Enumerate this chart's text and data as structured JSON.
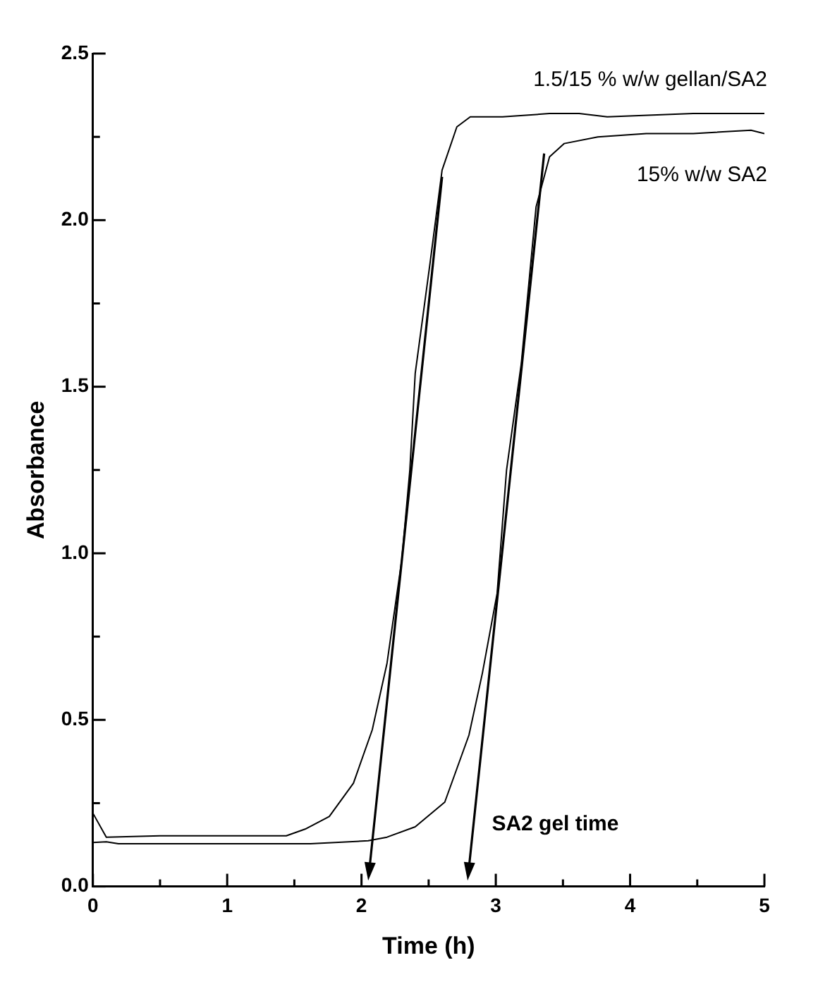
{
  "chart_data": {
    "type": "line",
    "xlabel": "Time (h)",
    "ylabel": "Absorbance",
    "xlim": [
      0,
      5
    ],
    "ylim": [
      0,
      2.5
    ],
    "xticks": [
      0,
      {
        "value": 0.5,
        "label": null
      },
      1,
      {
        "value": 1.5,
        "label": null
      },
      2,
      {
        "value": 2.5,
        "label": null
      },
      3,
      {
        "value": 3.5,
        "label": null
      },
      4,
      {
        "value": 4.5,
        "label": null
      },
      5
    ],
    "yticks": [
      {
        "value": 0,
        "label": "0.0"
      },
      {
        "value": 0.25,
        "label": null
      },
      {
        "value": 0.5,
        "label": "0.5"
      },
      {
        "value": 0.75,
        "label": null
      },
      {
        "value": 1,
        "label": "1.0"
      },
      {
        "value": 1.25,
        "label": null
      },
      {
        "value": 1.5,
        "label": "1.5"
      },
      {
        "value": 1.75,
        "label": null
      },
      {
        "value": 2,
        "label": "2.0"
      },
      {
        "value": 2.25,
        "label": null
      },
      {
        "value": 2.5,
        "label": "2.5"
      }
    ],
    "grid": false,
    "legend": false,
    "marker": "none",
    "line_style": "solid",
    "annotations": [
      "SA2 gel time"
    ],
    "series": [
      {
        "name": "1.5/15 % w/w gellan/SA2",
        "color": "#000000",
        "x": [
          0,
          0.1,
          0.5,
          1.0,
          1.44,
          1.58,
          1.76,
          1.94,
          2.08,
          2.19,
          2.3,
          2.36,
          2.4,
          2.51,
          2.6,
          2.71,
          2.81,
          3.05,
          3.4,
          3.62,
          3.83,
          4.47,
          4.9,
          5
        ],
        "values": [
          0.22,
          0.148,
          0.152,
          0.152,
          0.152,
          0.172,
          0.21,
          0.31,
          0.47,
          0.67,
          0.98,
          1.25,
          1.54,
          1.87,
          2.15,
          2.28,
          2.31,
          2.31,
          2.32,
          2.32,
          2.31,
          2.32,
          2.32,
          2.32
        ]
      },
      {
        "name": "15% w/w SA2",
        "color": "#000000",
        "x": [
          0,
          0.1,
          0.19,
          0.8,
          1.62,
          2.05,
          2.19,
          2.4,
          2.62,
          2.8,
          2.9,
          3.01,
          3.08,
          3.19,
          3.3,
          3.4,
          3.51,
          3.76,
          4.12,
          4.47,
          4.9,
          5
        ],
        "values": [
          0.132,
          0.134,
          0.128,
          0.128,
          0.128,
          0.137,
          0.148,
          0.179,
          0.253,
          0.454,
          0.64,
          0.88,
          1.25,
          1.57,
          2.04,
          2.19,
          2.23,
          2.25,
          2.26,
          2.26,
          2.27,
          2.26
        ]
      }
    ]
  }
}
